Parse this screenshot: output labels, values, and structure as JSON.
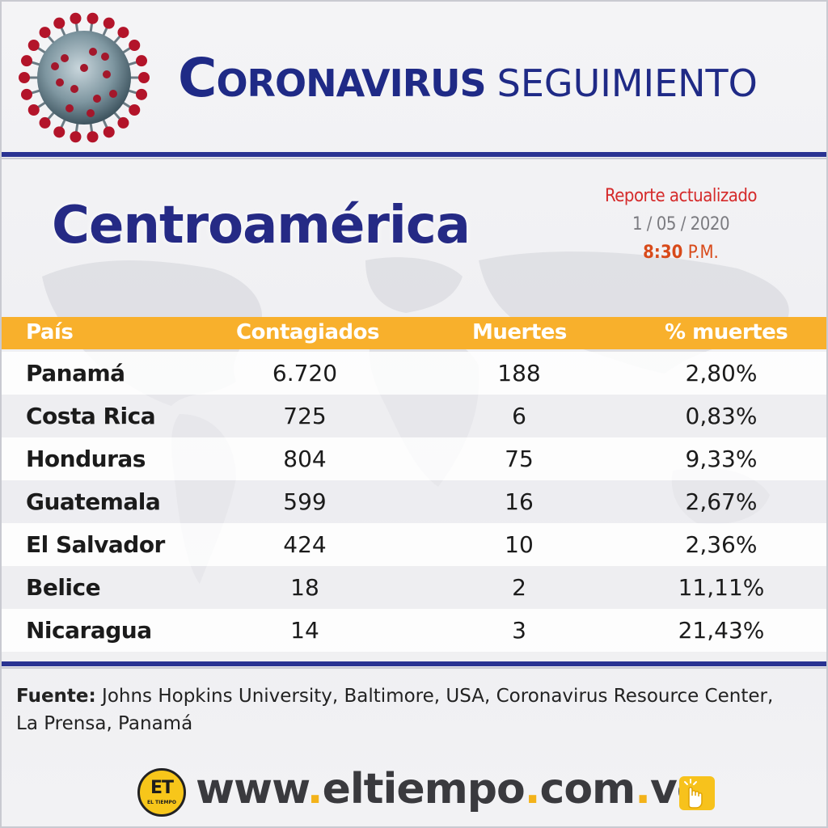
{
  "header": {
    "title_first_letter": "C",
    "title_rest": "ORONAVIRUS",
    "title_second": "SEGUIMIENTO",
    "virus_icon": "coronavirus-icon"
  },
  "region": "Centroamérica",
  "report": {
    "label": "Reporte actualizado",
    "date": "1 / 05 / 2020",
    "time": "8:30",
    "ampm": "P.M."
  },
  "table": {
    "columns": [
      "País",
      "Contagiados",
      "Muertes",
      "% muertes"
    ],
    "rows": [
      {
        "country": "Panamá",
        "cases": "6.720",
        "deaths": "188",
        "pct": "2,80%"
      },
      {
        "country": "Costa Rica",
        "cases": "725",
        "deaths": "6",
        "pct": "0,83%"
      },
      {
        "country": "Honduras",
        "cases": "804",
        "deaths": "75",
        "pct": "9,33%"
      },
      {
        "country": "Guatemala",
        "cases": "599",
        "deaths": "16",
        "pct": "2,67%"
      },
      {
        "country": "El Salvador",
        "cases": "424",
        "deaths": "10",
        "pct": "2,36%"
      },
      {
        "country": "Belice",
        "cases": "18",
        "deaths": "2",
        "pct": "11,11%"
      },
      {
        "country": "Nicaragua",
        "cases": "14",
        "deaths": "3",
        "pct": "21,43%"
      }
    ]
  },
  "source": {
    "label": "Fuente:",
    "text": " Johns Hopkins University, Baltimore, USA, Coronavirus Resource Center, La Prensa, Panamá"
  },
  "footer": {
    "logo_text": "ET",
    "logo_sub": "EL TIEMPO",
    "url_parts": [
      "www",
      "eltiempo",
      "com",
      "ve"
    ],
    "url_sep": ".",
    "cursor_icon": "hand-pointer-icon"
  },
  "colors": {
    "brand_blue": "#1f2a86",
    "table_header": "#f8b02c",
    "accent_red": "#d52a2a",
    "url_dot": "#f3b31a"
  }
}
